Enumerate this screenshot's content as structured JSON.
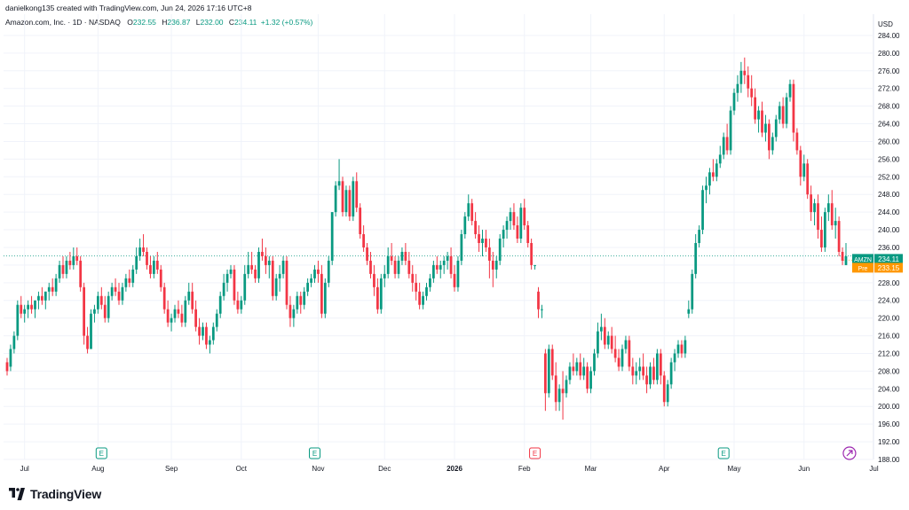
{
  "header": {
    "caption": "danielkong135 created with TradingView.com, Jun 24, 2026 17:16 UTC+8",
    "symbol": "Amazon.com, Inc. · 1D · NASDAQ",
    "o_label": "O",
    "o_value": "232.55",
    "h_label": "H",
    "h_value": "236.87",
    "l_label": "L",
    "l_value": "232.00",
    "c_label": "C",
    "c_value": "234.11",
    "change": "+1.32 (+0.57%)"
  },
  "brand": {
    "name": "TradingView"
  },
  "colors": {
    "up": "#089981",
    "down": "#f23645",
    "grid": "#f0f3fa",
    "price_tag": "#089981",
    "pre_tag": "#ff9800",
    "earnings": "#089981",
    "earnings_down": "#f23645",
    "dividend": "#9c27b0"
  },
  "chart_data": {
    "type": "candlestick",
    "currency": "USD",
    "ylim": [
      188,
      286
    ],
    "y_ticks": [
      "284.00",
      "280.00",
      "276.00",
      "272.00",
      "268.00",
      "264.00",
      "260.00",
      "256.00",
      "252.00",
      "248.00",
      "244.00",
      "240.00",
      "236.00",
      "232.00",
      "228.00",
      "224.00",
      "220.00",
      "216.00",
      "212.00",
      "208.00",
      "204.00",
      "200.00",
      "196.00",
      "192.00",
      "188.00"
    ],
    "x_ticks": [
      {
        "label": "Jul",
        "i": 5
      },
      {
        "label": "Aug",
        "i": 26
      },
      {
        "label": "Sep",
        "i": 47
      },
      {
        "label": "Oct",
        "i": 67
      },
      {
        "label": "Nov",
        "i": 89
      },
      {
        "label": "Dec",
        "i": 108
      },
      {
        "label": "2026",
        "i": 128,
        "bold": true
      },
      {
        "label": "Feb",
        "i": 148
      },
      {
        "label": "Mar",
        "i": 167
      },
      {
        "label": "Apr",
        "i": 188
      },
      {
        "label": "May",
        "i": 208
      },
      {
        "label": "Jun",
        "i": 228
      },
      {
        "label": "Jul",
        "i": 248
      }
    ],
    "last_price": {
      "label": "AMZN",
      "value": "234.11"
    },
    "pre_price": {
      "label": "Pre",
      "value": "233.15"
    },
    "events": [
      {
        "type": "E",
        "i": 27,
        "color": "#089981"
      },
      {
        "type": "E",
        "i": 88,
        "color": "#089981"
      },
      {
        "type": "E",
        "i": 151,
        "color": "#f23645"
      },
      {
        "type": "E",
        "i": 205,
        "color": "#089981"
      },
      {
        "type": "D",
        "i": 241,
        "color": "#9c27b0"
      }
    ],
    "ohlc": [
      [
        210,
        211,
        207,
        208
      ],
      [
        209,
        214,
        208,
        213
      ],
      [
        213,
        217,
        212,
        216
      ],
      [
        216,
        224,
        215,
        223
      ],
      [
        223,
        225,
        220,
        221
      ],
      [
        221,
        223,
        219,
        222
      ],
      [
        222,
        224,
        220,
        223
      ],
      [
        223,
        225,
        221,
        222
      ],
      [
        222,
        224,
        220,
        224
      ],
      [
        224,
        226,
        222,
        225
      ],
      [
        225,
        227,
        223,
        224
      ],
      [
        224,
        226,
        222,
        226
      ],
      [
        226,
        228,
        224,
        227
      ],
      [
        227,
        229,
        225,
        226
      ],
      [
        226,
        230,
        225,
        229
      ],
      [
        229,
        233,
        228,
        232
      ],
      [
        232,
        234,
        229,
        230
      ],
      [
        230,
        234,
        229,
        233
      ],
      [
        233,
        235,
        231,
        232
      ],
      [
        232,
        236,
        231,
        234
      ],
      [
        234,
        236,
        232,
        233
      ],
      [
        233,
        234,
        226,
        227
      ],
      [
        227,
        228,
        214,
        216
      ],
      [
        216,
        218,
        212,
        213
      ],
      [
        213,
        222,
        213,
        221
      ],
      [
        221,
        223,
        219,
        222
      ],
      [
        222,
        226,
        221,
        225
      ],
      [
        225,
        227,
        222,
        223
      ],
      [
        223,
        225,
        219,
        220
      ],
      [
        220,
        226,
        219,
        225
      ],
      [
        225,
        228,
        224,
        227
      ],
      [
        227,
        229,
        225,
        226
      ],
      [
        226,
        228,
        223,
        224
      ],
      [
        224,
        228,
        223,
        227
      ],
      [
        227,
        230,
        226,
        229
      ],
      [
        229,
        231,
        227,
        228
      ],
      [
        228,
        232,
        227,
        231
      ],
      [
        231,
        236,
        230,
        234
      ],
      [
        234,
        238,
        233,
        236
      ],
      [
        236,
        239,
        234,
        235
      ],
      [
        235,
        236,
        231,
        232
      ],
      [
        232,
        234,
        229,
        230
      ],
      [
        230,
        234,
        229,
        233
      ],
      [
        233,
        235,
        230,
        231
      ],
      [
        231,
        232,
        226,
        227
      ],
      [
        227,
        228,
        221,
        222
      ],
      [
        222,
        224,
        218,
        219
      ],
      [
        219,
        221,
        217,
        220
      ],
      [
        220,
        223,
        219,
        222
      ],
      [
        222,
        224,
        220,
        221
      ],
      [
        221,
        223,
        218,
        219
      ],
      [
        219,
        225,
        218,
        224
      ],
      [
        224,
        228,
        223,
        226
      ],
      [
        226,
        228,
        221,
        222
      ],
      [
        222,
        224,
        217,
        218
      ],
      [
        218,
        220,
        214,
        216
      ],
      [
        216,
        219,
        215,
        218
      ],
      [
        218,
        219,
        213,
        214
      ],
      [
        214,
        216,
        212,
        215
      ],
      [
        215,
        219,
        214,
        218
      ],
      [
        218,
        222,
        217,
        221
      ],
      [
        221,
        226,
        220,
        225
      ],
      [
        225,
        230,
        224,
        228
      ],
      [
        228,
        231,
        226,
        230
      ],
      [
        230,
        232,
        229,
        231
      ],
      [
        231,
        232,
        223,
        224
      ],
      [
        224,
        226,
        221,
        222
      ],
      [
        222,
        225,
        221,
        224
      ],
      [
        224,
        232,
        223,
        230
      ],
      [
        230,
        235,
        229,
        232
      ],
      [
        232,
        235,
        230,
        231
      ],
      [
        231,
        232,
        228,
        229
      ],
      [
        229,
        236,
        228,
        235
      ],
      [
        235,
        238,
        233,
        234
      ],
      [
        234,
        236,
        230,
        232
      ],
      [
        232,
        234,
        229,
        233
      ],
      [
        233,
        234,
        224,
        225
      ],
      [
        225,
        230,
        224,
        229
      ],
      [
        229,
        232,
        226,
        230
      ],
      [
        230,
        234,
        229,
        233
      ],
      [
        233,
        234,
        222,
        223
      ],
      [
        223,
        225,
        218,
        220
      ],
      [
        220,
        223,
        218,
        222
      ],
      [
        222,
        226,
        221,
        225
      ],
      [
        225,
        226,
        221,
        223
      ],
      [
        223,
        227,
        222,
        226
      ],
      [
        226,
        229,
        225,
        228
      ],
      [
        228,
        230,
        227,
        229
      ],
      [
        229,
        232,
        228,
        231
      ],
      [
        231,
        233,
        228,
        230
      ],
      [
        230,
        232,
        220,
        221
      ],
      [
        221,
        229,
        220,
        228
      ],
      [
        228,
        234,
        227,
        233
      ],
      [
        233,
        244,
        232,
        244
      ],
      [
        244,
        251,
        243,
        250
      ],
      [
        250,
        256,
        249,
        251
      ],
      [
        251,
        252,
        243,
        244
      ],
      [
        244,
        250,
        243,
        249
      ],
      [
        249,
        250,
        242,
        243
      ],
      [
        243,
        252,
        242,
        251
      ],
      [
        251,
        253,
        244,
        245
      ],
      [
        245,
        246,
        238,
        239
      ],
      [
        239,
        241,
        235,
        236
      ],
      [
        236,
        237,
        232,
        233
      ],
      [
        233,
        235,
        229,
        230
      ],
      [
        230,
        232,
        225,
        227
      ],
      [
        227,
        229,
        221,
        222
      ],
      [
        222,
        230,
        221,
        229
      ],
      [
        229,
        232,
        227,
        230
      ],
      [
        230,
        236,
        229,
        234
      ],
      [
        234,
        237,
        232,
        233
      ],
      [
        233,
        234,
        229,
        230
      ],
      [
        230,
        234,
        229,
        233
      ],
      [
        233,
        236,
        232,
        235
      ],
      [
        235,
        237,
        232,
        233
      ],
      [
        233,
        235,
        229,
        230
      ],
      [
        230,
        232,
        226,
        228
      ],
      [
        228,
        230,
        224,
        226
      ],
      [
        226,
        228,
        222,
        223
      ],
      [
        223,
        226,
        222,
        225
      ],
      [
        225,
        228,
        224,
        227
      ],
      [
        227,
        230,
        226,
        229
      ],
      [
        229,
        233,
        228,
        232
      ],
      [
        232,
        234,
        230,
        231
      ],
      [
        231,
        233,
        229,
        232
      ],
      [
        232,
        234,
        230,
        233
      ],
      [
        233,
        235,
        231,
        234
      ],
      [
        234,
        236,
        229,
        230
      ],
      [
        230,
        232,
        226,
        227
      ],
      [
        227,
        234,
        226,
        233
      ],
      [
        233,
        240,
        232,
        239
      ],
      [
        239,
        244,
        238,
        243
      ],
      [
        243,
        248,
        242,
        246
      ],
      [
        246,
        247,
        241,
        242
      ],
      [
        242,
        244,
        238,
        239
      ],
      [
        239,
        241,
        235,
        237
      ],
      [
        237,
        240,
        234,
        238
      ],
      [
        238,
        240,
        235,
        236
      ],
      [
        236,
        238,
        229,
        233
      ],
      [
        233,
        235,
        227,
        231
      ],
      [
        231,
        234,
        229,
        233
      ],
      [
        233,
        239,
        232,
        238
      ],
      [
        238,
        241,
        236,
        240
      ],
      [
        240,
        243,
        238,
        242
      ],
      [
        242,
        245,
        240,
        244
      ],
      [
        244,
        246,
        240,
        241
      ],
      [
        241,
        243,
        237,
        238
      ],
      [
        238,
        246,
        237,
        245
      ],
      [
        245,
        247,
        240,
        241
      ],
      [
        241,
        242,
        236,
        237
      ],
      [
        237,
        238,
        231,
        232
      ],
      [
        232,
        232,
        231,
        232
      ],
      [
        226,
        227,
        220,
        222
      ],
      [
        222,
        223,
        220,
        222
      ],
      [
        212,
        213,
        199,
        203
      ],
      [
        203,
        214,
        202,
        213
      ],
      [
        213,
        214,
        206,
        207
      ],
      [
        207,
        210,
        199,
        201
      ],
      [
        201,
        205,
        199,
        204
      ],
      [
        204,
        208,
        197,
        203
      ],
      [
        203,
        207,
        202,
        206
      ],
      [
        206,
        210,
        205,
        209
      ],
      [
        209,
        212,
        207,
        208
      ],
      [
        208,
        211,
        207,
        210
      ],
      [
        210,
        212,
        206,
        207
      ],
      [
        207,
        211,
        206,
        209
      ],
      [
        209,
        210,
        203,
        204
      ],
      [
        204,
        209,
        203,
        208
      ],
      [
        208,
        213,
        207,
        212
      ],
      [
        212,
        219,
        211,
        217
      ],
      [
        217,
        221,
        215,
        218
      ],
      [
        218,
        220,
        213,
        214
      ],
      [
        214,
        217,
        213,
        216
      ],
      [
        216,
        218,
        212,
        213
      ],
      [
        213,
        216,
        210,
        211
      ],
      [
        211,
        213,
        208,
        209
      ],
      [
        209,
        214,
        208,
        213
      ],
      [
        213,
        216,
        212,
        215
      ],
      [
        215,
        216,
        208,
        209
      ],
      [
        209,
        211,
        205,
        207
      ],
      [
        207,
        210,
        205,
        208
      ],
      [
        208,
        211,
        206,
        209
      ],
      [
        209,
        212,
        206,
        207
      ],
      [
        207,
        209,
        203,
        205
      ],
      [
        205,
        210,
        204,
        209
      ],
      [
        209,
        211,
        205,
        206
      ],
      [
        206,
        213,
        205,
        212
      ],
      [
        212,
        213,
        205,
        207
      ],
      [
        207,
        208,
        200,
        201
      ],
      [
        201,
        206,
        200,
        205
      ],
      [
        205,
        211,
        204,
        210
      ],
      [
        210,
        213,
        208,
        212
      ],
      [
        212,
        215,
        211,
        214
      ],
      [
        214,
        215,
        211,
        212
      ],
      [
        212,
        216,
        211,
        215
      ],
      [
        221,
        224,
        220,
        222
      ],
      [
        222,
        231,
        221,
        230
      ],
      [
        230,
        239,
        229,
        237
      ],
      [
        237,
        241,
        236,
        240
      ],
      [
        240,
        250,
        239,
        249
      ],
      [
        249,
        252,
        246,
        250
      ],
      [
        250,
        254,
        248,
        253
      ],
      [
        253,
        256,
        251,
        252
      ],
      [
        252,
        256,
        251,
        255
      ],
      [
        255,
        259,
        254,
        257
      ],
      [
        257,
        262,
        256,
        261
      ],
      [
        261,
        264,
        257,
        258
      ],
      [
        258,
        268,
        257,
        267
      ],
      [
        267,
        272,
        266,
        271
      ],
      [
        271,
        275,
        269,
        273
      ],
      [
        273,
        278,
        271,
        276
      ],
      [
        276,
        279,
        273,
        275
      ],
      [
        275,
        277,
        270,
        272
      ],
      [
        272,
        275,
        268,
        270
      ],
      [
        270,
        272,
        264,
        265
      ],
      [
        265,
        268,
        262,
        267
      ],
      [
        267,
        269,
        261,
        262
      ],
      [
        262,
        266,
        260,
        264
      ],
      [
        264,
        265,
        256,
        258
      ],
      [
        258,
        262,
        257,
        261
      ],
      [
        261,
        266,
        260,
        265
      ],
      [
        265,
        269,
        264,
        268
      ],
      [
        268,
        270,
        263,
        264
      ],
      [
        264,
        271,
        263,
        270
      ],
      [
        270,
        274,
        269,
        273
      ],
      [
        273,
        274,
        260,
        262
      ],
      [
        262,
        263,
        257,
        258
      ],
      [
        258,
        259,
        250,
        252
      ],
      [
        252,
        257,
        251,
        255
      ],
      [
        255,
        256,
        247,
        248
      ],
      [
        248,
        250,
        242,
        244
      ],
      [
        244,
        247,
        241,
        246
      ],
      [
        246,
        248,
        238,
        240
      ],
      [
        240,
        243,
        235,
        236
      ],
      [
        236,
        245,
        235,
        244
      ],
      [
        244,
        248,
        242,
        246
      ],
      [
        246,
        249,
        240,
        241
      ],
      [
        241,
        245,
        238,
        242
      ],
      [
        242,
        243,
        234,
        235
      ],
      [
        235,
        236,
        232,
        233
      ],
      [
        232,
        237,
        232,
        234
      ]
    ]
  }
}
